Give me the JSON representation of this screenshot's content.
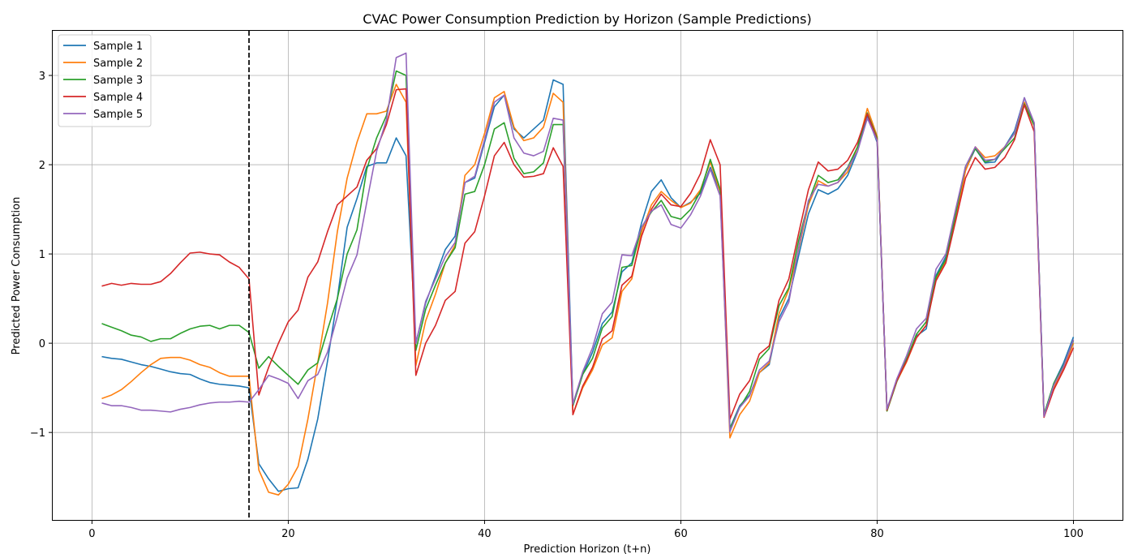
{
  "chart_data": {
    "type": "line",
    "title": "CVAC Power Consumption Prediction by Horizon (Sample Predictions)",
    "xlabel": "Prediction Horizon (t+n)",
    "ylabel": "Predicted Power Consumption",
    "xlim": [
      -4,
      105
    ],
    "ylim": [
      -1.98,
      3.5
    ],
    "xticks": [
      0,
      20,
      40,
      60,
      80,
      100
    ],
    "xtick_labels": [
      "0",
      "20",
      "40",
      "60",
      "80",
      "100"
    ],
    "yticks": [
      -1,
      0,
      1,
      2,
      3
    ],
    "ytick_labels": [
      "−1",
      "0",
      "1",
      "2",
      "3"
    ],
    "grid": true,
    "legend_position": "top-left",
    "vline": {
      "x": 16,
      "style": "dashed",
      "color": "#000000"
    },
    "x": [
      1,
      2,
      3,
      4,
      5,
      6,
      7,
      8,
      9,
      10,
      11,
      12,
      13,
      14,
      15,
      16,
      17,
      18,
      19,
      20,
      21,
      22,
      23,
      24,
      25,
      26,
      27,
      28,
      29,
      30,
      31,
      32,
      33,
      34,
      35,
      36,
      37,
      38,
      39,
      40,
      41,
      42,
      43,
      44,
      45,
      46,
      47,
      48,
      49,
      50,
      51,
      52,
      53,
      54,
      55,
      56,
      57,
      58,
      59,
      60,
      61,
      62,
      63,
      64,
      65,
      66,
      67,
      68,
      69,
      70,
      71,
      72,
      73,
      74,
      75,
      76,
      77,
      78,
      79,
      80,
      81,
      82,
      83,
      84,
      85,
      86,
      87,
      88,
      89,
      90,
      91,
      92,
      93,
      94,
      95,
      96,
      97,
      98,
      99,
      100
    ],
    "series": [
      {
        "name": "Sample 1",
        "color": "#1f77b4",
        "values": [
          -0.15,
          -0.17,
          -0.18,
          -0.21,
          -0.24,
          -0.26,
          -0.29,
          -0.32,
          -0.34,
          -0.35,
          -0.4,
          -0.44,
          -0.46,
          -0.47,
          -0.48,
          -0.5,
          -1.35,
          -1.52,
          -1.66,
          -1.63,
          -1.62,
          -1.3,
          -0.85,
          -0.2,
          0.5,
          1.3,
          1.62,
          1.98,
          2.02,
          2.02,
          2.3,
          2.1,
          0.0,
          0.45,
          0.75,
          1.05,
          1.2,
          1.8,
          1.85,
          2.25,
          2.65,
          2.78,
          2.4,
          2.3,
          2.4,
          2.5,
          2.95,
          2.9,
          -0.7,
          -0.35,
          -0.1,
          0.22,
          0.35,
          0.8,
          0.9,
          1.35,
          1.7,
          1.83,
          1.63,
          1.52,
          1.58,
          1.68,
          1.97,
          1.7,
          -0.95,
          -0.7,
          -0.58,
          -0.33,
          -0.24,
          0.28,
          0.5,
          0.98,
          1.45,
          1.72,
          1.67,
          1.73,
          1.88,
          2.15,
          2.55,
          2.25,
          -0.75,
          -0.42,
          -0.18,
          0.08,
          0.16,
          0.76,
          0.97,
          1.42,
          1.94,
          2.18,
          2.02,
          2.03,
          2.2,
          2.38,
          2.75,
          2.45,
          -0.8,
          -0.45,
          -0.22,
          0.07
        ]
      },
      {
        "name": "Sample 2",
        "color": "#ff7f0e",
        "values": [
          -0.62,
          -0.58,
          -0.52,
          -0.43,
          -0.33,
          -0.24,
          -0.17,
          -0.16,
          -0.16,
          -0.19,
          -0.24,
          -0.27,
          -0.33,
          -0.37,
          -0.37,
          -0.37,
          -1.42,
          -1.67,
          -1.7,
          -1.58,
          -1.38,
          -0.85,
          -0.22,
          0.45,
          1.25,
          1.85,
          2.25,
          2.57,
          2.57,
          2.6,
          2.9,
          2.7,
          -0.25,
          0.25,
          0.55,
          0.9,
          1.1,
          1.88,
          2.0,
          2.35,
          2.75,
          2.82,
          2.42,
          2.27,
          2.3,
          2.42,
          2.8,
          2.7,
          -0.8,
          -0.5,
          -0.3,
          -0.02,
          0.06,
          0.58,
          0.72,
          1.25,
          1.55,
          1.7,
          1.6,
          1.52,
          1.57,
          1.72,
          2.03,
          1.7,
          -1.06,
          -0.8,
          -0.65,
          -0.33,
          -0.22,
          0.33,
          0.6,
          1.05,
          1.55,
          1.82,
          1.76,
          1.8,
          1.92,
          2.2,
          2.63,
          2.32,
          -0.76,
          -0.43,
          -0.21,
          0.06,
          0.2,
          0.72,
          0.92,
          1.38,
          1.93,
          2.2,
          2.08,
          2.1,
          2.2,
          2.35,
          2.7,
          2.43,
          -0.82,
          -0.5,
          -0.28,
          0.0
        ]
      },
      {
        "name": "Sample 3",
        "color": "#2ca02c",
        "values": [
          0.22,
          0.18,
          0.14,
          0.09,
          0.07,
          0.02,
          0.05,
          0.05,
          0.11,
          0.16,
          0.19,
          0.2,
          0.16,
          0.2,
          0.2,
          0.12,
          -0.28,
          -0.15,
          -0.26,
          -0.36,
          -0.46,
          -0.3,
          -0.22,
          0.15,
          0.5,
          1.0,
          1.27,
          1.95,
          2.3,
          2.55,
          3.05,
          3.0,
          -0.08,
          0.38,
          0.65,
          0.9,
          1.07,
          1.67,
          1.7,
          2.0,
          2.4,
          2.47,
          2.07,
          1.9,
          1.92,
          2.02,
          2.45,
          2.45,
          -0.7,
          -0.35,
          -0.17,
          0.17,
          0.3,
          0.85,
          0.87,
          1.3,
          1.47,
          1.6,
          1.42,
          1.39,
          1.5,
          1.7,
          2.06,
          1.73,
          -0.96,
          -0.72,
          -0.54,
          -0.18,
          -0.06,
          0.42,
          0.62,
          1.15,
          1.58,
          1.88,
          1.8,
          1.83,
          1.97,
          2.2,
          2.58,
          2.3,
          -0.76,
          -0.43,
          -0.18,
          0.1,
          0.24,
          0.74,
          0.94,
          1.45,
          1.98,
          2.18,
          2.03,
          2.06,
          2.18,
          2.3,
          2.68,
          2.44,
          -0.8,
          -0.45,
          -0.25,
          0.03
        ]
      },
      {
        "name": "Sample 4",
        "color": "#d62728",
        "values": [
          0.64,
          0.67,
          0.65,
          0.67,
          0.66,
          0.66,
          0.69,
          0.78,
          0.9,
          1.01,
          1.02,
          1.0,
          0.99,
          0.91,
          0.85,
          0.72,
          -0.58,
          -0.27,
          0.0,
          0.24,
          0.37,
          0.74,
          0.91,
          1.25,
          1.55,
          1.65,
          1.75,
          2.05,
          2.18,
          2.45,
          2.84,
          2.85,
          -0.36,
          0.0,
          0.2,
          0.48,
          0.58,
          1.12,
          1.25,
          1.65,
          2.1,
          2.25,
          2.0,
          1.86,
          1.87,
          1.9,
          2.19,
          1.98,
          -0.8,
          -0.48,
          -0.27,
          0.05,
          0.14,
          0.65,
          0.75,
          1.2,
          1.5,
          1.67,
          1.55,
          1.53,
          1.68,
          1.9,
          2.28,
          2.0,
          -0.85,
          -0.57,
          -0.42,
          -0.12,
          -0.03,
          0.48,
          0.72,
          1.23,
          1.72,
          2.03,
          1.93,
          1.95,
          2.05,
          2.25,
          2.57,
          2.28,
          -0.75,
          -0.42,
          -0.2,
          0.06,
          0.2,
          0.7,
          0.9,
          1.37,
          1.85,
          2.08,
          1.95,
          1.97,
          2.08,
          2.28,
          2.67,
          2.37,
          -0.83,
          -0.52,
          -0.3,
          -0.05
        ]
      },
      {
        "name": "Sample 5",
        "color": "#9467bd",
        "values": [
          -0.67,
          -0.7,
          -0.7,
          -0.72,
          -0.75,
          -0.75,
          -0.76,
          -0.77,
          -0.74,
          -0.72,
          -0.69,
          -0.67,
          -0.66,
          -0.66,
          -0.65,
          -0.66,
          -0.52,
          -0.36,
          -0.4,
          -0.45,
          -0.62,
          -0.42,
          -0.35,
          -0.1,
          0.3,
          0.73,
          0.99,
          1.58,
          2.15,
          2.5,
          3.2,
          3.25,
          0.0,
          0.47,
          0.72,
          0.97,
          1.13,
          1.8,
          1.87,
          2.28,
          2.7,
          2.78,
          2.3,
          2.13,
          2.1,
          2.15,
          2.52,
          2.5,
          -0.68,
          -0.32,
          -0.05,
          0.33,
          0.46,
          0.99,
          0.98,
          1.3,
          1.48,
          1.55,
          1.33,
          1.29,
          1.44,
          1.65,
          1.95,
          1.65,
          -0.99,
          -0.72,
          -0.59,
          -0.3,
          -0.2,
          0.24,
          0.46,
          1.07,
          1.6,
          1.78,
          1.76,
          1.8,
          1.96,
          2.15,
          2.52,
          2.27,
          -0.74,
          -0.4,
          -0.14,
          0.16,
          0.28,
          0.83,
          1.0,
          1.5,
          1.98,
          2.2,
          2.05,
          2.06,
          2.2,
          2.35,
          2.75,
          2.47,
          -0.82,
          -0.47,
          -0.26,
          0.04
        ]
      }
    ]
  }
}
